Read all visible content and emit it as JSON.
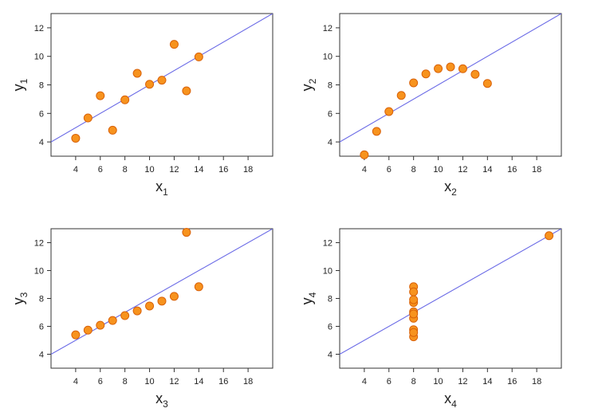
{
  "chart_data": [
    {
      "type": "scatter",
      "xlabel": "x",
      "xlabel_sub": "1",
      "ylabel": "y",
      "ylabel_sub": "1",
      "xlim": [
        2,
        20
      ],
      "ylim": [
        3,
        13
      ],
      "xticks": [
        "4",
        "6",
        "8",
        "10",
        "12",
        "14",
        "16",
        "18"
      ],
      "yticks": [
        "4",
        "6",
        "8",
        "10",
        "12"
      ],
      "x": [
        10,
        8,
        13,
        9,
        11,
        14,
        6,
        4,
        12,
        7,
        5
      ],
      "y": [
        8.04,
        6.95,
        7.58,
        8.81,
        8.33,
        9.96,
        7.24,
        4.26,
        10.84,
        4.82,
        5.68
      ],
      "fit_line": {
        "intercept": 3.0,
        "slope": 0.5
      },
      "grid": false
    },
    {
      "type": "scatter",
      "xlabel": "x",
      "xlabel_sub": "2",
      "ylabel": "y",
      "ylabel_sub": "2",
      "xlim": [
        2,
        20
      ],
      "ylim": [
        3,
        13
      ],
      "xticks": [
        "4",
        "6",
        "8",
        "10",
        "12",
        "14",
        "16",
        "18"
      ],
      "yticks": [
        "4",
        "6",
        "8",
        "10",
        "12"
      ],
      "x": [
        10,
        8,
        13,
        9,
        11,
        14,
        6,
        4,
        12,
        7,
        5
      ],
      "y": [
        9.14,
        8.14,
        8.74,
        8.77,
        9.26,
        8.1,
        6.13,
        3.1,
        9.13,
        7.26,
        4.74
      ],
      "fit_line": {
        "intercept": 3.0,
        "slope": 0.5
      },
      "grid": false
    },
    {
      "type": "scatter",
      "xlabel": "x",
      "xlabel_sub": "3",
      "ylabel": "y",
      "ylabel_sub": "3",
      "xlim": [
        2,
        20
      ],
      "ylim": [
        3,
        13
      ],
      "xticks": [
        "4",
        "6",
        "8",
        "10",
        "12",
        "14",
        "16",
        "18"
      ],
      "yticks": [
        "4",
        "6",
        "8",
        "10",
        "12"
      ],
      "x": [
        10,
        8,
        13,
        9,
        11,
        14,
        6,
        4,
        12,
        7,
        5
      ],
      "y": [
        7.46,
        6.77,
        12.74,
        7.11,
        7.81,
        8.84,
        6.08,
        5.39,
        8.15,
        6.42,
        5.73
      ],
      "fit_line": {
        "intercept": 3.0,
        "slope": 0.5
      },
      "grid": false
    },
    {
      "type": "scatter",
      "xlabel": "x",
      "xlabel_sub": "4",
      "ylabel": "y",
      "ylabel_sub": "4",
      "xlim": [
        2,
        20
      ],
      "ylim": [
        3,
        13
      ],
      "xticks": [
        "4",
        "6",
        "8",
        "10",
        "12",
        "14",
        "16",
        "18"
      ],
      "yticks": [
        "4",
        "6",
        "8",
        "10",
        "12"
      ],
      "x": [
        8,
        8,
        8,
        8,
        8,
        8,
        8,
        19,
        8,
        8,
        8
      ],
      "y": [
        6.58,
        5.76,
        7.71,
        8.84,
        8.47,
        7.04,
        5.25,
        12.5,
        5.56,
        7.91,
        6.89
      ],
      "fit_line": {
        "intercept": 3.0,
        "slope": 0.5
      },
      "grid": false
    }
  ],
  "colors": {
    "point_fill": "#f7931e",
    "point_stroke": "#d9620a",
    "fit_line": "#6a6ae6",
    "axis": "#333333"
  }
}
